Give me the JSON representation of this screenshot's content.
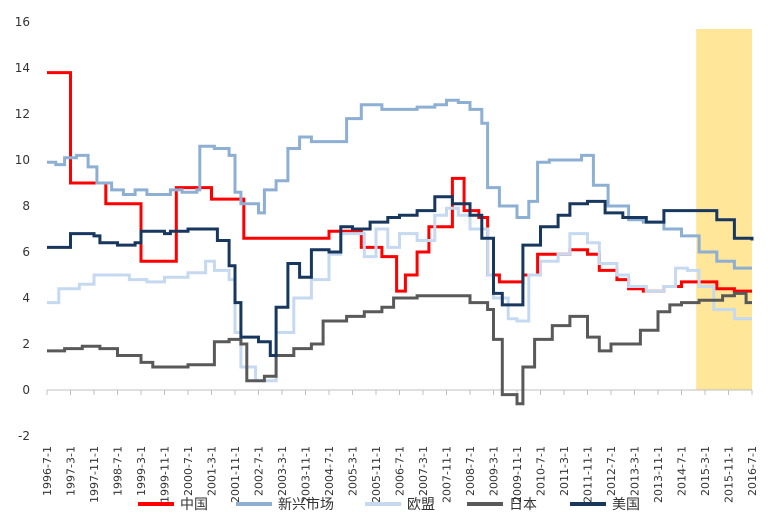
{
  "chart_data": {
    "type": "line",
    "title": "",
    "xlabel": "",
    "ylabel": "",
    "ylim": [
      -2,
      16
    ],
    "y_ticks": [
      -2,
      0,
      2,
      4,
      6,
      8,
      10,
      12,
      14,
      16
    ],
    "x_range": [
      "1996-07",
      "2016-07"
    ],
    "x_tick_labels": [
      "1996-7-1",
      "1997-3-1",
      "1997-11-1",
      "1998-7-1",
      "1999-3-1",
      "1999-11-1",
      "2000-7-1",
      "2001-3-1",
      "2001-11-1",
      "2002-7-1",
      "2003-3-1",
      "2003-11-1",
      "2004-7-1",
      "2005-3-1",
      "2005-11-1",
      "2006-7-1",
      "2007-3-1",
      "2007-11-1",
      "2008-7-1",
      "2009-3-1",
      "2009-11-1",
      "2010-7-1",
      "2011-3-1",
      "2011-11-1",
      "2012-7-1",
      "2013-3-1",
      "2013-11-1",
      "2014-7-1",
      "2015-3-1",
      "2015-11-1",
      "2016-7-1"
    ],
    "grid": false,
    "legend_position": "bottom",
    "highlight_band": {
      "from": "2014-12",
      "to": "2016-07",
      "color": "#FFE699"
    },
    "series": [
      {
        "name": "中国",
        "color": "#FF0000",
        "points": [
          [
            "1996-07",
            13.8
          ],
          [
            "1997-02",
            13.8
          ],
          [
            "1997-03",
            9.0
          ],
          [
            "1998-01",
            9.0
          ],
          [
            "1998-03",
            8.1
          ],
          [
            "1999-01",
            8.1
          ],
          [
            "1999-03",
            5.6
          ],
          [
            "2000-02",
            5.6
          ],
          [
            "2000-03",
            8.8
          ],
          [
            "2001-02",
            8.8
          ],
          [
            "2001-03",
            8.3
          ],
          [
            "2002-01",
            8.3
          ],
          [
            "2002-02",
            6.6
          ],
          [
            "2003-01",
            6.6
          ],
          [
            "2004-01",
            6.6
          ],
          [
            "2004-07",
            6.9
          ],
          [
            "2005-03",
            6.9
          ],
          [
            "2005-06",
            6.2
          ],
          [
            "2006-01",
            5.8
          ],
          [
            "2006-06",
            4.3
          ],
          [
            "2006-09",
            5.0
          ],
          [
            "2007-01",
            6.0
          ],
          [
            "2007-05",
            7.1
          ],
          [
            "2007-11",
            7.1
          ],
          [
            "2008-01",
            9.2
          ],
          [
            "2008-04",
            9.2
          ],
          [
            "2008-05",
            7.8
          ],
          [
            "2008-10",
            7.5
          ],
          [
            "2009-01",
            5.0
          ],
          [
            "2009-05",
            4.7
          ],
          [
            "2010-01",
            5.0
          ],
          [
            "2010-06",
            5.9
          ],
          [
            "2011-05",
            6.1
          ],
          [
            "2011-11",
            5.9
          ],
          [
            "2012-03",
            5.2
          ],
          [
            "2012-09",
            4.8
          ],
          [
            "2013-01",
            4.4
          ],
          [
            "2013-06",
            4.3
          ],
          [
            "2014-01",
            4.5
          ],
          [
            "2014-07",
            4.7
          ],
          [
            "2015-01",
            4.7
          ],
          [
            "2015-07",
            4.4
          ],
          [
            "2016-01",
            4.3
          ],
          [
            "2016-07",
            4.3
          ]
        ]
      },
      {
        "name": "新兴市场",
        "color": "#8DAFD4",
        "points": [
          [
            "1996-07",
            9.9
          ],
          [
            "1996-10",
            9.8
          ],
          [
            "1997-01",
            10.1
          ],
          [
            "1997-05",
            10.2
          ],
          [
            "1997-09",
            9.7
          ],
          [
            "1997-12",
            9.0
          ],
          [
            "1998-05",
            8.7
          ],
          [
            "1998-09",
            8.5
          ],
          [
            "1999-01",
            8.7
          ],
          [
            "1999-05",
            8.5
          ],
          [
            "1999-09",
            8.5
          ],
          [
            "2000-01",
            8.7
          ],
          [
            "2000-05",
            8.6
          ],
          [
            "2000-10",
            8.7
          ],
          [
            "2000-11",
            10.6
          ],
          [
            "2001-04",
            10.5
          ],
          [
            "2001-09",
            10.2
          ],
          [
            "2001-11",
            8.6
          ],
          [
            "2002-01",
            8.1
          ],
          [
            "2002-07",
            7.7
          ],
          [
            "2002-09",
            8.7
          ],
          [
            "2003-01",
            9.1
          ],
          [
            "2003-05",
            10.5
          ],
          [
            "2003-09",
            11.0
          ],
          [
            "2004-01",
            10.8
          ],
          [
            "2004-07",
            10.8
          ],
          [
            "2005-01",
            11.8
          ],
          [
            "2005-06",
            12.4
          ],
          [
            "2006-01",
            12.2
          ],
          [
            "2006-07",
            12.2
          ],
          [
            "2007-01",
            12.3
          ],
          [
            "2007-07",
            12.4
          ],
          [
            "2007-11",
            12.6
          ],
          [
            "2008-03",
            12.5
          ],
          [
            "2008-07",
            12.2
          ],
          [
            "2008-11",
            11.6
          ],
          [
            "2009-01",
            8.8
          ],
          [
            "2009-05",
            8.0
          ],
          [
            "2009-11",
            7.5
          ],
          [
            "2010-03",
            8.2
          ],
          [
            "2010-06",
            9.9
          ],
          [
            "2010-10",
            10.0
          ],
          [
            "2011-03",
            10.0
          ],
          [
            "2011-09",
            10.2
          ],
          [
            "2012-01",
            8.9
          ],
          [
            "2012-06",
            8.0
          ],
          [
            "2013-01",
            7.4
          ],
          [
            "2013-06",
            7.3
          ],
          [
            "2014-01",
            7.0
          ],
          [
            "2014-07",
            6.7
          ],
          [
            "2015-01",
            6.0
          ],
          [
            "2015-07",
            5.6
          ],
          [
            "2016-01",
            5.3
          ],
          [
            "2016-07",
            5.3
          ]
        ]
      },
      {
        "name": "欧盟",
        "color": "#C5D9F1",
        "points": [
          [
            "1996-07",
            3.8
          ],
          [
            "1996-11",
            4.4
          ],
          [
            "1997-06",
            4.6
          ],
          [
            "1997-11",
            5.0
          ],
          [
            "1998-07",
            5.0
          ],
          [
            "1998-11",
            4.8
          ],
          [
            "1999-05",
            4.7
          ],
          [
            "1999-11",
            4.9
          ],
          [
            "2000-07",
            5.1
          ],
          [
            "2001-01",
            5.6
          ],
          [
            "2001-04",
            5.2
          ],
          [
            "2001-09",
            4.8
          ],
          [
            "2001-11",
            2.5
          ],
          [
            "2002-01",
            1.0
          ],
          [
            "2002-06",
            0.4
          ],
          [
            "2002-09",
            0.4
          ],
          [
            "2003-01",
            2.5
          ],
          [
            "2003-07",
            4.0
          ],
          [
            "2004-01",
            4.8
          ],
          [
            "2004-07",
            5.9
          ],
          [
            "2004-11",
            6.8
          ],
          [
            "2005-03",
            6.8
          ],
          [
            "2005-07",
            5.8
          ],
          [
            "2005-11",
            7.0
          ],
          [
            "2006-03",
            6.2
          ],
          [
            "2006-07",
            6.8
          ],
          [
            "2007-01",
            6.5
          ],
          [
            "2007-07",
            7.6
          ],
          [
            "2007-11",
            7.9
          ],
          [
            "2008-03",
            7.6
          ],
          [
            "2008-07",
            7.0
          ],
          [
            "2009-01",
            5.0
          ],
          [
            "2009-03",
            4.0
          ],
          [
            "2009-08",
            3.1
          ],
          [
            "2009-11",
            3.0
          ],
          [
            "2010-03",
            5.0
          ],
          [
            "2010-07",
            5.6
          ],
          [
            "2011-01",
            5.9
          ],
          [
            "2011-05",
            6.8
          ],
          [
            "2011-11",
            6.4
          ],
          [
            "2012-03",
            5.5
          ],
          [
            "2012-09",
            5.0
          ],
          [
            "2013-01",
            4.5
          ],
          [
            "2013-07",
            4.3
          ],
          [
            "2014-01",
            4.5
          ],
          [
            "2014-05",
            5.3
          ],
          [
            "2014-09",
            5.2
          ],
          [
            "2015-01",
            4.5
          ],
          [
            "2015-06",
            3.5
          ],
          [
            "2016-01",
            3.1
          ],
          [
            "2016-07",
            3.1
          ]
        ]
      },
      {
        "name": "日本",
        "color": "#595959",
        "points": [
          [
            "1996-07",
            1.7
          ],
          [
            "1997-01",
            1.8
          ],
          [
            "1997-07",
            1.9
          ],
          [
            "1998-01",
            1.8
          ],
          [
            "1998-07",
            1.5
          ],
          [
            "1999-03",
            1.2
          ],
          [
            "1999-07",
            1.0
          ],
          [
            "2000-07",
            1.1
          ],
          [
            "2001-03",
            1.1
          ],
          [
            "2001-04",
            2.1
          ],
          [
            "2001-09",
            2.2
          ],
          [
            "2002-01",
            2.0
          ],
          [
            "2002-03",
            0.4
          ],
          [
            "2002-09",
            0.6
          ],
          [
            "2003-01",
            1.5
          ],
          [
            "2003-07",
            1.8
          ],
          [
            "2004-01",
            2.0
          ],
          [
            "2004-05",
            3.0
          ],
          [
            "2005-01",
            3.2
          ],
          [
            "2005-07",
            3.4
          ],
          [
            "2006-01",
            3.6
          ],
          [
            "2006-05",
            4.0
          ],
          [
            "2007-01",
            4.1
          ],
          [
            "2007-07",
            4.1
          ],
          [
            "2008-01",
            4.1
          ],
          [
            "2008-07",
            3.8
          ],
          [
            "2009-01",
            3.5
          ],
          [
            "2009-03",
            2.2
          ],
          [
            "2009-06",
            -0.2
          ],
          [
            "2009-11",
            -0.6
          ],
          [
            "2010-01",
            1.0
          ],
          [
            "2010-05",
            2.2
          ],
          [
            "2010-11",
            2.8
          ],
          [
            "2011-05",
            3.2
          ],
          [
            "2011-11",
            2.3
          ],
          [
            "2012-03",
            1.7
          ],
          [
            "2012-07",
            2.0
          ],
          [
            "2013-01",
            2.0
          ],
          [
            "2013-05",
            2.6
          ],
          [
            "2013-11",
            3.4
          ],
          [
            "2014-03",
            3.7
          ],
          [
            "2014-07",
            3.8
          ],
          [
            "2015-01",
            3.9
          ],
          [
            "2015-09",
            4.1
          ],
          [
            "2016-01",
            4.2
          ],
          [
            "2016-05",
            3.8
          ],
          [
            "2016-07",
            3.8
          ]
        ]
      },
      {
        "name": "美国",
        "color": "#17375E",
        "points": [
          [
            "1996-07",
            6.2
          ],
          [
            "1997-01",
            6.2
          ],
          [
            "1997-03",
            6.8
          ],
          [
            "1997-11",
            6.7
          ],
          [
            "1998-01",
            6.4
          ],
          [
            "1998-07",
            6.3
          ],
          [
            "1999-01",
            6.4
          ],
          [
            "1999-03",
            6.9
          ],
          [
            "1999-11",
            6.8
          ],
          [
            "2000-01",
            6.9
          ],
          [
            "2000-07",
            7.0
          ],
          [
            "2001-01",
            7.0
          ],
          [
            "2001-05",
            6.5
          ],
          [
            "2001-09",
            5.4
          ],
          [
            "2001-11",
            3.8
          ],
          [
            "2002-01",
            2.3
          ],
          [
            "2002-07",
            2.1
          ],
          [
            "2002-11",
            1.5
          ],
          [
            "2003-01",
            3.6
          ],
          [
            "2003-05",
            5.5
          ],
          [
            "2003-09",
            4.9
          ],
          [
            "2004-01",
            6.1
          ],
          [
            "2004-07",
            6.0
          ],
          [
            "2004-11",
            7.1
          ],
          [
            "2005-03",
            7.0
          ],
          [
            "2005-09",
            7.3
          ],
          [
            "2006-03",
            7.5
          ],
          [
            "2006-07",
            7.6
          ],
          [
            "2007-01",
            7.8
          ],
          [
            "2007-07",
            8.4
          ],
          [
            "2008-01",
            8.1
          ],
          [
            "2008-07",
            7.6
          ],
          [
            "2008-11",
            6.6
          ],
          [
            "2009-03",
            4.2
          ],
          [
            "2009-06",
            3.7
          ],
          [
            "2009-11",
            3.7
          ],
          [
            "2010-01",
            6.3
          ],
          [
            "2010-07",
            7.1
          ],
          [
            "2011-01",
            7.6
          ],
          [
            "2011-05",
            8.1
          ],
          [
            "2011-11",
            8.2
          ],
          [
            "2012-05",
            7.7
          ],
          [
            "2012-11",
            7.5
          ],
          [
            "2013-07",
            7.3
          ],
          [
            "2014-01",
            7.8
          ],
          [
            "2014-07",
            7.8
          ],
          [
            "2015-01",
            7.8
          ],
          [
            "2015-07",
            7.4
          ],
          [
            "2016-01",
            6.6
          ],
          [
            "2016-07",
            6.5
          ]
        ]
      }
    ]
  }
}
